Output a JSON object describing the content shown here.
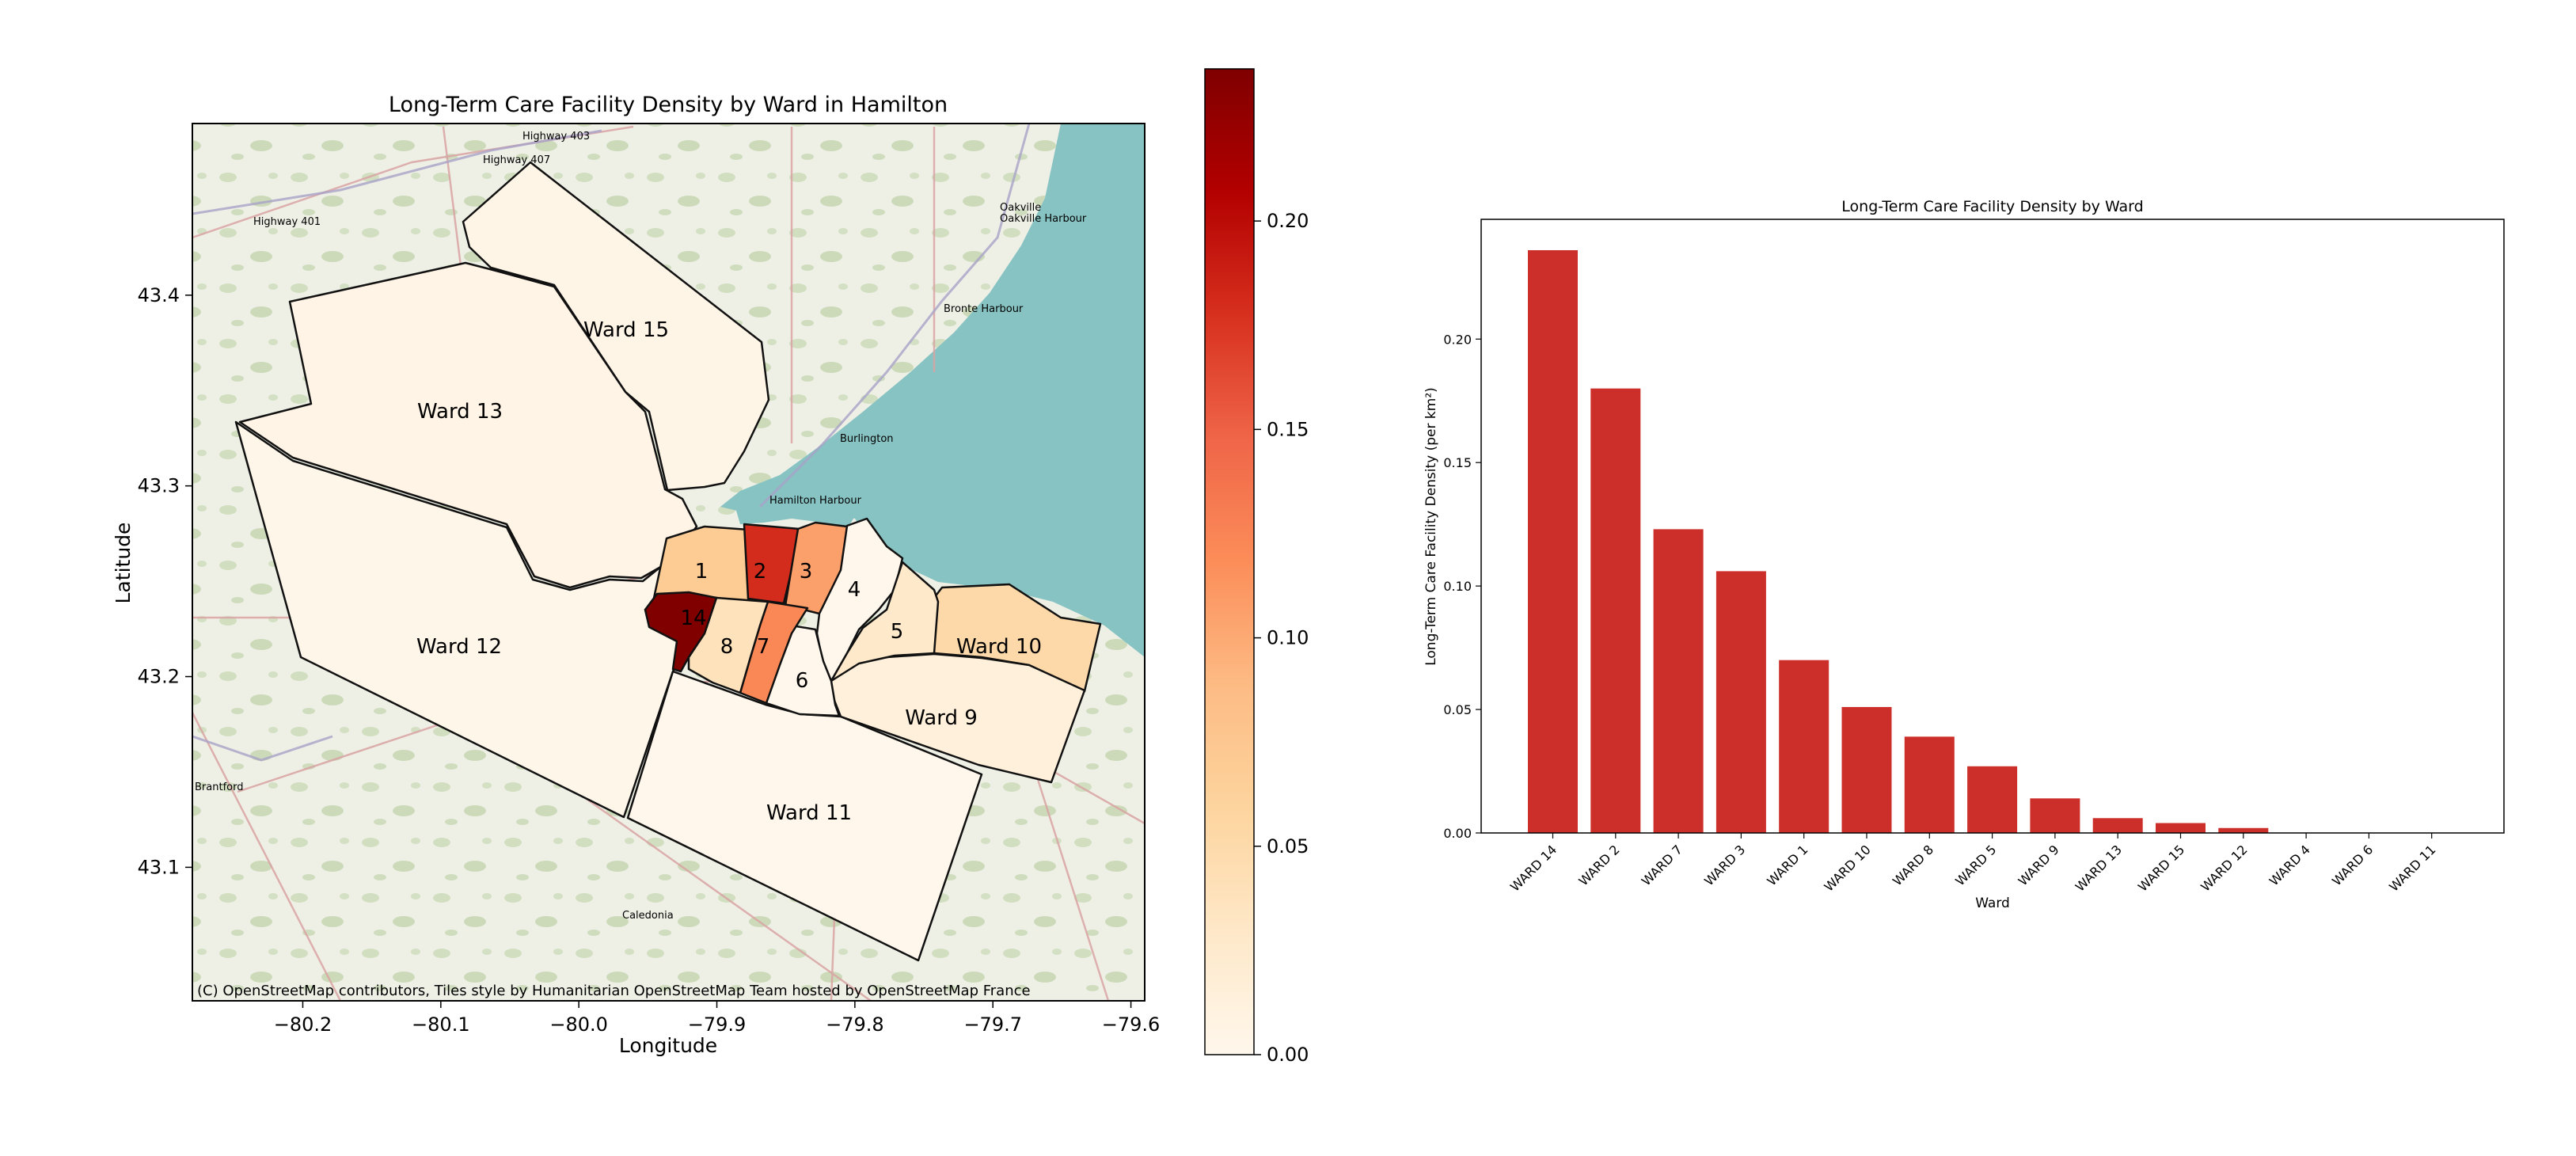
{
  "chart_data": [
    {
      "type": "choropleth-map",
      "title": "Long-Term Care Facility Density by Ward in Hamilton",
      "xlabel": "Longitude",
      "ylabel": "Latitude",
      "xlim": [
        -80.28,
        -79.59
      ],
      "ylim": [
        43.03,
        43.49
      ],
      "x_ticks": [
        "−80.2",
        "−80.1",
        "−80.0",
        "−79.9",
        "−79.8",
        "−79.7",
        "−79.6"
      ],
      "x_tick_values": [
        -80.2,
        -80.1,
        -80.0,
        -79.9,
        -79.8,
        -79.7,
        -79.6
      ],
      "y_ticks": [
        "43.1",
        "43.2",
        "43.3",
        "43.4"
      ],
      "y_tick_values": [
        43.1,
        43.2,
        43.3,
        43.4
      ],
      "attribution": "(C) OpenStreetMap contributors, Tiles style by Humanitarian OpenStreetMap Team hosted by OpenStreetMap France",
      "basemap_labels": [
        "Burlington",
        "Oakville",
        "Oakville Harbour",
        "Bronte Harbour",
        "Hamilton Harbour",
        "Brantford",
        "Caledonia",
        "Highway 401",
        "Highway 403",
        "Highway 407"
      ],
      "colorbar": {
        "colormap": "OrRd",
        "range": [
          0.0,
          0.2365
        ],
        "ticks": [
          "0.00",
          "0.05",
          "0.10",
          "0.15",
          "0.20"
        ],
        "tick_values": [
          0.0,
          0.05,
          0.1,
          0.15,
          0.2
        ]
      },
      "regions": [
        {
          "label": "Ward 15",
          "value": 0.004
        },
        {
          "label": "Ward 13",
          "value": 0.006
        },
        {
          "label": "Ward 12",
          "value": 0.002
        },
        {
          "label": "Ward 11",
          "value": 0.0
        },
        {
          "label": "Ward 10",
          "value": 0.051
        },
        {
          "label": "Ward 9",
          "value": 0.014
        },
        {
          "label": "1",
          "value": 0.07
        },
        {
          "label": "2",
          "value": 0.18
        },
        {
          "label": "3",
          "value": 0.106
        },
        {
          "label": "4",
          "value": 0.0
        },
        {
          "label": "5",
          "value": 0.027
        },
        {
          "label": "6",
          "value": 0.0
        },
        {
          "label": "7",
          "value": 0.123
        },
        {
          "label": "8",
          "value": 0.039
        },
        {
          "label": "14",
          "value": 0.236
        }
      ]
    },
    {
      "type": "bar",
      "title": "Long-Term Care Facility Density by Ward",
      "xlabel": "Ward",
      "ylabel": "Long-Term Care Facility Density (per km²)",
      "categories": [
        "WARD 14",
        "WARD 2",
        "WARD 7",
        "WARD 3",
        "WARD 1",
        "WARD 10",
        "WARD 8",
        "WARD 5",
        "WARD 9",
        "WARD 13",
        "WARD 15",
        "WARD 12",
        "WARD 4",
        "WARD 6",
        "WARD 11"
      ],
      "values": [
        0.236,
        0.18,
        0.123,
        0.106,
        0.07,
        0.051,
        0.039,
        0.027,
        0.014,
        0.006,
        0.004,
        0.002,
        0.0,
        0.0,
        0.0
      ],
      "ylim": [
        0,
        0.2485
      ],
      "y_ticks": [
        "0.00",
        "0.05",
        "0.10",
        "0.15",
        "0.20"
      ],
      "y_tick_values": [
        0.0,
        0.05,
        0.1,
        0.15,
        0.2
      ],
      "bar_color": "#cc2e29"
    }
  ]
}
